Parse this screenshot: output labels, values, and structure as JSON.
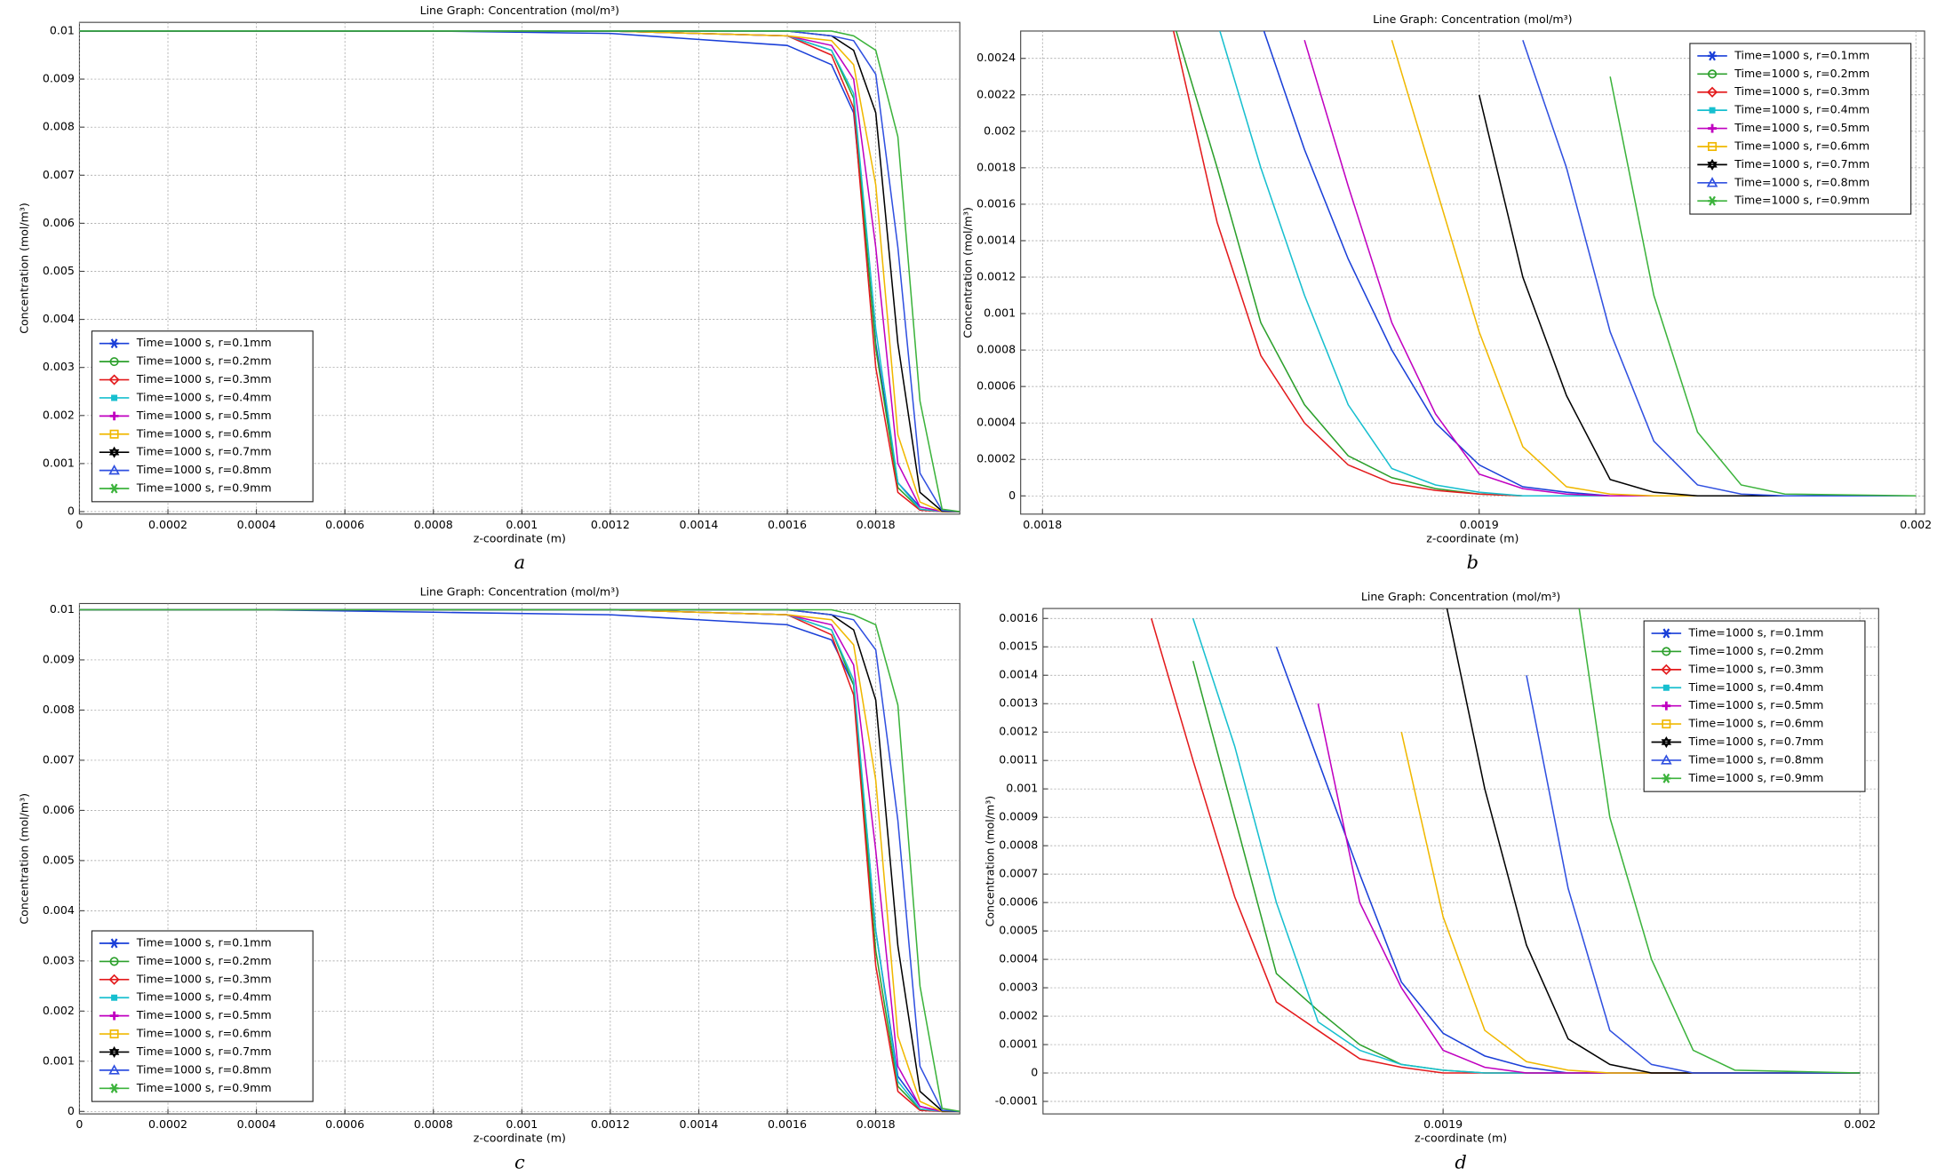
{
  "chart_data": [
    {
      "type": "line",
      "title": "Line Graph: Concentration (mol/m³)",
      "x_label": "z-coordinate (m)",
      "y_label": "Concentration (mol/m³)",
      "caption": "a",
      "xlim": [
        0,
        0.00199
      ],
      "ylim": [
        0,
        0.01
      ],
      "xticks": [
        0,
        0.0002,
        0.0004,
        0.0006,
        0.0008,
        0.001,
        0.0012,
        0.0014,
        0.0016,
        0.0018
      ],
      "yticks": [
        0,
        0.001,
        0.002,
        0.003,
        0.004,
        0.005,
        0.006,
        0.007,
        0.008,
        0.009,
        0.01
      ],
      "grid": true,
      "legend": "lower left",
      "x": [
        0,
        0.0004,
        0.0008,
        0.0012,
        0.0016,
        0.0017,
        0.00175,
        0.0018,
        0.00185,
        0.0019,
        0.00195,
        0.00199
      ],
      "series": [
        {
          "name": "Time=1000 s, r=0.1mm",
          "color": "#1a3fd8",
          "marker": "asterisk",
          "values": [
            0.01,
            0.01,
            0.01,
            0.00995,
            0.0097,
            0.0093,
            0.0083,
            0.0035,
            0.0006,
            0.0001,
            0,
            0
          ]
        },
        {
          "name": "Time=1000 s, r=0.2mm",
          "color": "#2ca02c",
          "marker": "circle",
          "values": [
            0.01,
            0.01,
            0.01,
            0.01,
            0.0099,
            0.0096,
            0.0086,
            0.0034,
            0.0005,
            5e-05,
            0,
            0
          ]
        },
        {
          "name": "Time=1000 s, r=0.3mm",
          "color": "#e31a1c",
          "marker": "diamond",
          "values": [
            0.01,
            0.01,
            0.01,
            0.01,
            0.0099,
            0.0095,
            0.0084,
            0.003,
            0.0004,
            3e-05,
            0,
            0
          ]
        },
        {
          "name": "Time=1000 s, r=0.4mm",
          "color": "#17bfcf",
          "marker": "square",
          "values": [
            0.01,
            0.01,
            0.01,
            0.01,
            0.0099,
            0.0096,
            0.0087,
            0.0038,
            0.0006,
            5e-05,
            0,
            0
          ]
        },
        {
          "name": "Time=1000 s, r=0.5mm",
          "color": "#c000c0",
          "marker": "plus",
          "values": [
            0.01,
            0.01,
            0.01,
            0.01,
            0.0099,
            0.0097,
            0.009,
            0.0055,
            0.001,
            0.0001,
            0,
            0
          ]
        },
        {
          "name": "Time=1000 s, r=0.6mm",
          "color": "#f0b800",
          "marker": "open-square",
          "values": [
            0.01,
            0.01,
            0.01,
            0.01,
            0.0099,
            0.0098,
            0.0093,
            0.0068,
            0.0016,
            0.0002,
            0,
            0
          ]
        },
        {
          "name": "Time=1000 s, r=0.7mm",
          "color": "#000000",
          "marker": "star",
          "values": [
            0.01,
            0.01,
            0.01,
            0.01,
            0.01,
            0.0099,
            0.0096,
            0.0083,
            0.0035,
            0.0004,
            1e-05,
            0
          ]
        },
        {
          "name": "Time=1000 s, r=0.8mm",
          "color": "#3050e0",
          "marker": "triangle",
          "values": [
            0.01,
            0.01,
            0.01,
            0.01,
            0.01,
            0.0099,
            0.0098,
            0.0091,
            0.0055,
            0.0008,
            2e-05,
            0
          ]
        },
        {
          "name": "Time=1000 s, r=0.9mm",
          "color": "#3cb33c",
          "marker": "asterisk",
          "values": [
            0.01,
            0.01,
            0.01,
            0.01,
            0.01,
            0.01,
            0.0099,
            0.0096,
            0.0078,
            0.0023,
            5e-05,
            0
          ]
        }
      ]
    },
    {
      "type": "line",
      "title": "Line Graph: Concentration (mol/m³)",
      "x_label": "z-coordinate (m)",
      "y_label": "Concentration (mol/m³)",
      "caption": "b",
      "xlim": [
        0.001795,
        0.002002
      ],
      "ylim": [
        -0.0001,
        0.00255
      ],
      "xticks": [
        0.0018,
        0.0019,
        0.002
      ],
      "yticks": [
        0,
        0.0002,
        0.0004,
        0.0006,
        0.0008,
        0.001,
        0.0012,
        0.0014,
        0.0016,
        0.0018,
        0.002,
        0.0022,
        0.0024
      ],
      "grid": true,
      "legend": "upper right",
      "x": [
        0.00183,
        0.00184,
        0.00185,
        0.00186,
        0.00187,
        0.00188,
        0.00189,
        0.0019,
        0.00191,
        0.00192,
        0.00193,
        0.00194,
        0.00195,
        0.00196,
        0.00197,
        0.002
      ],
      "series": [
        {
          "name": "Time=1000 s, r=0.1mm",
          "color": "#1a3fd8",
          "marker": "asterisk",
          "values": [
            null,
            null,
            0.0026,
            0.0019,
            0.0013,
            0.0008,
            0.0004,
            0.00017,
            5e-05,
            2e-05,
            0,
            0,
            0,
            0,
            0,
            0
          ]
        },
        {
          "name": "Time=1000 s, r=0.2mm",
          "color": "#2ca02c",
          "marker": "circle",
          "values": [
            0.0026,
            0.0018,
            0.00095,
            0.0005,
            0.00022,
            0.0001,
            4e-05,
            1e-05,
            0,
            0,
            0,
            0,
            0,
            0,
            0,
            0
          ]
        },
        {
          "name": "Time=1000 s, r=0.3mm",
          "color": "#e31a1c",
          "marker": "diamond",
          "values": [
            0.00255,
            0.0015,
            0.00077,
            0.0004,
            0.00017,
            7e-05,
            3e-05,
            1e-05,
            0,
            0,
            0,
            0,
            0,
            0,
            0,
            0
          ]
        },
        {
          "name": "Time=1000 s, r=0.4mm",
          "color": "#17bfcf",
          "marker": "square",
          "values": [
            null,
            0.0026,
            0.0018,
            0.0011,
            0.0005,
            0.00015,
            6e-05,
            2e-05,
            0,
            0,
            0,
            0,
            0,
            0,
            0,
            0
          ]
        },
        {
          "name": "Time=1000 s, r=0.5mm",
          "color": "#c000c0",
          "marker": "plus",
          "values": [
            null,
            null,
            null,
            0.0025,
            0.0017,
            0.00095,
            0.00045,
            0.00012,
            4e-05,
            1e-05,
            0,
            0,
            0,
            0,
            0,
            0
          ]
        },
        {
          "name": "Time=1000 s, r=0.6mm",
          "color": "#f0b800",
          "marker": "open-square",
          "values": [
            null,
            null,
            null,
            null,
            null,
            0.0025,
            0.0017,
            0.0009,
            0.00027,
            5e-05,
            1e-05,
            0,
            0,
            0,
            0,
            0
          ]
        },
        {
          "name": "Time=1000 s, r=0.7mm",
          "color": "#000000",
          "marker": "star",
          "values": [
            null,
            null,
            null,
            null,
            null,
            null,
            null,
            0.0022,
            0.0012,
            0.00055,
            9e-05,
            2e-05,
            0,
            0,
            0,
            0
          ]
        },
        {
          "name": "Time=1000 s, r=0.8mm",
          "color": "#3050e0",
          "marker": "triangle",
          "values": [
            null,
            null,
            null,
            null,
            null,
            null,
            null,
            null,
            0.0025,
            0.0018,
            0.0009,
            0.0003,
            6e-05,
            1e-05,
            0,
            0
          ]
        },
        {
          "name": "Time=1000 s, r=0.9mm",
          "color": "#3cb33c",
          "marker": "asterisk",
          "values": [
            null,
            null,
            null,
            null,
            null,
            null,
            null,
            null,
            null,
            null,
            0.0023,
            0.0011,
            0.00035,
            6e-05,
            1e-05,
            0
          ]
        }
      ]
    },
    {
      "type": "line",
      "title": "Line Graph: Concentration (mol/m³)",
      "x_label": "z-coordinate (m)",
      "y_label": "Concentration (mol/m³)",
      "caption": "c",
      "xlim": [
        0,
        0.00199
      ],
      "ylim": [
        0,
        0.01
      ],
      "xticks": [
        0,
        0.0002,
        0.0004,
        0.0006,
        0.0008,
        0.001,
        0.0012,
        0.0014,
        0.0016,
        0.0018
      ],
      "yticks": [
        0,
        0.001,
        0.002,
        0.003,
        0.004,
        0.005,
        0.006,
        0.007,
        0.008,
        0.009,
        0.01
      ],
      "grid": true,
      "legend": "lower left",
      "x": [
        0,
        0.0004,
        0.0008,
        0.0012,
        0.0016,
        0.0017,
        0.00175,
        0.0018,
        0.00185,
        0.0019,
        0.00195,
        0.00199
      ],
      "series": [
        {
          "name": "Time=1000 s, r=0.1mm",
          "color": "#1a3fd8",
          "marker": "asterisk",
          "values": [
            0.01,
            0.01,
            0.00995,
            0.0099,
            0.0097,
            0.0094,
            0.0085,
            0.0036,
            0.0007,
            0.0001,
            0,
            0
          ]
        },
        {
          "name": "Time=1000 s, r=0.2mm",
          "color": "#2ca02c",
          "marker": "circle",
          "values": [
            0.01,
            0.01,
            0.01,
            0.01,
            0.0099,
            0.0096,
            0.0085,
            0.0032,
            0.0005,
            4e-05,
            0,
            0
          ]
        },
        {
          "name": "Time=1000 s, r=0.3mm",
          "color": "#e31a1c",
          "marker": "diamond",
          "values": [
            0.01,
            0.01,
            0.01,
            0.01,
            0.0099,
            0.0095,
            0.0083,
            0.0029,
            0.0004,
            2e-05,
            0,
            0
          ]
        },
        {
          "name": "Time=1000 s, r=0.4mm",
          "color": "#17bfcf",
          "marker": "square",
          "values": [
            0.01,
            0.01,
            0.01,
            0.01,
            0.0099,
            0.0096,
            0.0086,
            0.0036,
            0.0006,
            5e-05,
            0,
            0
          ]
        },
        {
          "name": "Time=1000 s, r=0.5mm",
          "color": "#c000c0",
          "marker": "plus",
          "values": [
            0.01,
            0.01,
            0.01,
            0.01,
            0.0099,
            0.0097,
            0.0089,
            0.0052,
            0.0009,
            0.0001,
            0,
            0
          ]
        },
        {
          "name": "Time=1000 s, r=0.6mm",
          "color": "#f0b800",
          "marker": "open-square",
          "values": [
            0.01,
            0.01,
            0.01,
            0.01,
            0.0099,
            0.0098,
            0.0093,
            0.0066,
            0.0015,
            0.0002,
            0,
            0
          ]
        },
        {
          "name": "Time=1000 s, r=0.7mm",
          "color": "#000000",
          "marker": "star",
          "values": [
            0.01,
            0.01,
            0.01,
            0.01,
            0.01,
            0.0099,
            0.0096,
            0.0082,
            0.0033,
            0.0004,
            1e-05,
            0
          ]
        },
        {
          "name": "Time=1000 s, r=0.8mm",
          "color": "#3050e0",
          "marker": "triangle",
          "values": [
            0.01,
            0.01,
            0.01,
            0.01,
            0.01,
            0.0099,
            0.0098,
            0.0092,
            0.0058,
            0.0009,
            2e-05,
            0
          ]
        },
        {
          "name": "Time=1000 s, r=0.9mm",
          "color": "#3cb33c",
          "marker": "asterisk",
          "values": [
            0.01,
            0.01,
            0.01,
            0.01,
            0.01,
            0.01,
            0.0099,
            0.0097,
            0.0081,
            0.0025,
            6e-05,
            0
          ]
        }
      ]
    },
    {
      "type": "line",
      "title": "Line Graph: Concentration (mol/m³)",
      "x_label": "z-coordinate (m)",
      "y_label": "Concentration (mol/m³)",
      "caption": "d",
      "xlim": [
        0.001804,
        0.0020045
      ],
      "ylim": [
        -0.000144,
        0.001635
      ],
      "xticks": [
        0.0019,
        0.002
      ],
      "yticks": [
        -0.0001,
        0,
        0.0001,
        0.0002,
        0.0003,
        0.0004,
        0.0005,
        0.0006,
        0.0007,
        0.0008,
        0.0009,
        0.001,
        0.0011,
        0.0012,
        0.0013,
        0.0014,
        0.0015,
        0.0016
      ],
      "grid": true,
      "legend": "upper right",
      "x": [
        0.00183,
        0.00184,
        0.00185,
        0.00186,
        0.00187,
        0.00188,
        0.00189,
        0.0019,
        0.00191,
        0.00192,
        0.00193,
        0.00194,
        0.00195,
        0.00196,
        0.00197,
        0.002
      ],
      "series": [
        {
          "name": "Time=1000 s, r=0.1mm",
          "color": "#1a3fd8",
          "marker": "asterisk",
          "values": [
            null,
            null,
            null,
            0.0015,
            0.0011,
            0.0007,
            0.00032,
            0.00014,
            6e-05,
            2e-05,
            0,
            0,
            0,
            0,
            0,
            0
          ]
        },
        {
          "name": "Time=1000 s, r=0.2mm",
          "color": "#2ca02c",
          "marker": "circle",
          "values": [
            null,
            0.00145,
            0.0009,
            0.00035,
            0.00022,
            0.0001,
            3e-05,
            1e-05,
            0,
            0,
            0,
            0,
            0,
            0,
            0,
            0
          ]
        },
        {
          "name": "Time=1000 s, r=0.3mm",
          "color": "#e31a1c",
          "marker": "diamond",
          "values": [
            0.0016,
            0.0011,
            0.00062,
            0.00025,
            0.00015,
            5e-05,
            2e-05,
            0,
            0,
            0,
            0,
            0,
            0,
            0,
            0,
            0
          ]
        },
        {
          "name": "Time=1000 s, r=0.4mm",
          "color": "#17bfcf",
          "marker": "square",
          "values": [
            null,
            0.0016,
            0.00115,
            0.0006,
            0.00018,
            8e-05,
            3e-05,
            1e-05,
            0,
            0,
            0,
            0,
            0,
            0,
            0,
            0
          ]
        },
        {
          "name": "Time=1000 s, r=0.5mm",
          "color": "#c000c0",
          "marker": "plus",
          "values": [
            null,
            null,
            null,
            null,
            0.0013,
            0.0006,
            0.0003,
            8e-05,
            2e-05,
            0,
            0,
            0,
            0,
            0,
            0,
            0
          ]
        },
        {
          "name": "Time=1000 s, r=0.6mm",
          "color": "#f0b800",
          "marker": "open-square",
          "values": [
            null,
            null,
            null,
            null,
            null,
            null,
            0.0012,
            0.00055,
            0.00015,
            4e-05,
            1e-05,
            0,
            0,
            0,
            0,
            0
          ]
        },
        {
          "name": "Time=1000 s, r=0.7mm",
          "color": "#000000",
          "marker": "star",
          "values": [
            null,
            null,
            null,
            null,
            null,
            null,
            null,
            0.0017,
            0.001,
            0.00045,
            0.00012,
            3e-05,
            0,
            0,
            0,
            0
          ]
        },
        {
          "name": "Time=1000 s, r=0.8mm",
          "color": "#3050e0",
          "marker": "triangle",
          "values": [
            null,
            null,
            null,
            null,
            null,
            null,
            null,
            null,
            null,
            0.0014,
            0.00065,
            0.00015,
            3e-05,
            0,
            0,
            0
          ]
        },
        {
          "name": "Time=1000 s, r=0.9mm",
          "color": "#3cb33c",
          "marker": "asterisk",
          "values": [
            null,
            null,
            null,
            null,
            null,
            null,
            null,
            null,
            null,
            null,
            0.0019,
            0.0009,
            0.0004,
            8e-05,
            1e-05,
            0
          ]
        }
      ]
    }
  ]
}
